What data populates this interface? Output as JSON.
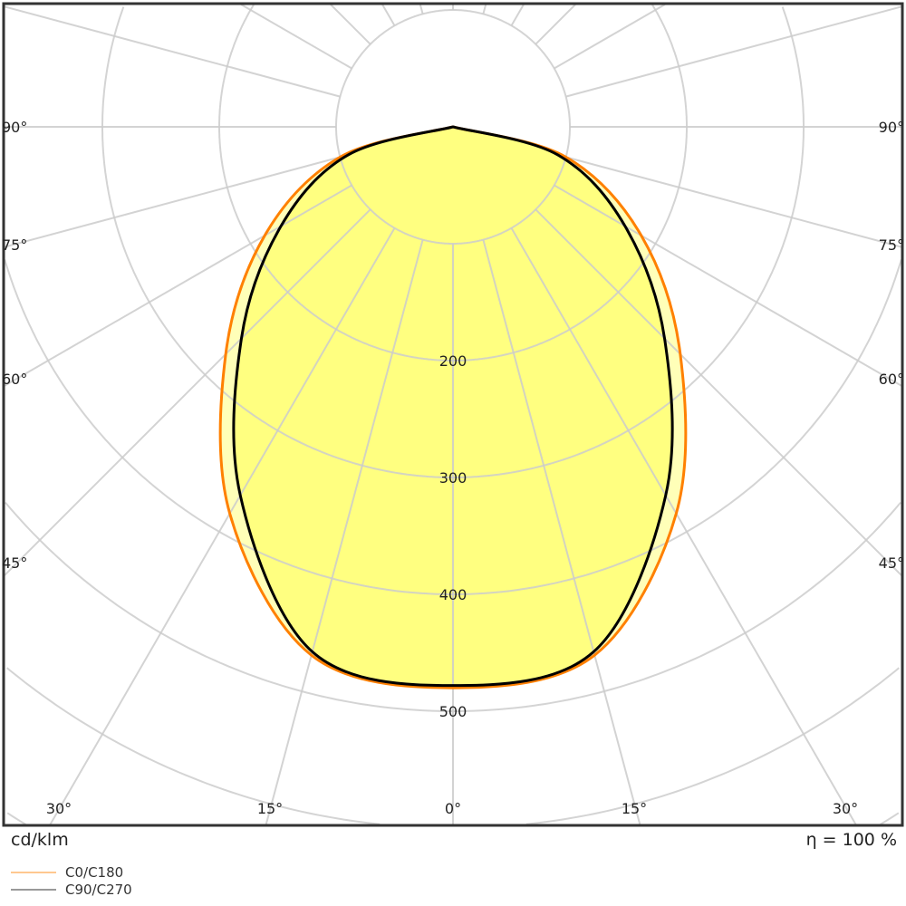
{
  "chart_data": {
    "type": "polar",
    "unit_label": "cd/klm",
    "efficiency_label": "η = 100 %",
    "angle_unit": "°",
    "angle_range": [
      -90,
      90
    ],
    "radial_range": [
      0,
      700
    ],
    "radial_tick_labels": [
      "200",
      "300",
      "400",
      "500"
    ],
    "radial_ticks": [
      200,
      300,
      400,
      500
    ],
    "angle_side_labels": [
      "90°",
      "75°",
      "60°",
      "45°"
    ],
    "angle_bottom_labels": [
      "30°",
      "15°",
      "0°",
      "15°",
      "30°"
    ],
    "grid": true,
    "legend_placement": "bottom-left",
    "angles": [
      0,
      15,
      30,
      45,
      60,
      75,
      90
    ],
    "series": [
      {
        "name": "C0/C180",
        "color": "#ff8000",
        "legend_color": "#ffc890",
        "values": [
          480,
          468,
          382,
          275,
          186,
          100,
          0
        ]
      },
      {
        "name": "C90/C270",
        "color": "#000000",
        "legend_color": "#999999",
        "values": [
          478,
          465,
          364,
          256,
          170,
          93,
          0
        ]
      }
    ],
    "colors": {
      "fill": "#ffff80",
      "fill_outer": "#ffffb8",
      "grid": "#cccccc",
      "frame": "#333333"
    }
  }
}
